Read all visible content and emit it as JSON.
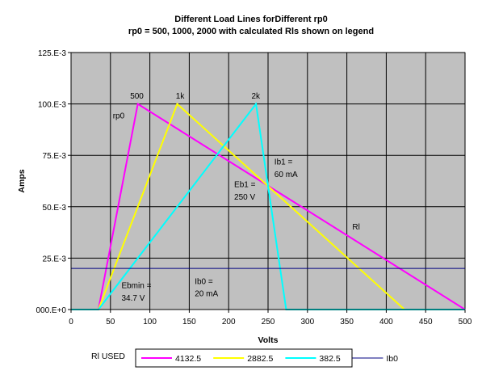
{
  "chart_data": {
    "type": "line",
    "title": "Different Load Lines forDifferent rp0",
    "subtitle": "rp0 = 500, 1000, 2000 with calculated Rls shown on legend",
    "xlabel": "Volts",
    "ylabel": "Amps",
    "xlim": [
      0,
      500
    ],
    "ylim": [
      0,
      0.125
    ],
    "x_ticks": [
      0,
      50,
      100,
      150,
      200,
      250,
      300,
      350,
      400,
      450,
      500
    ],
    "x_tick_labels": [
      "0",
      "50",
      "100",
      "150",
      "200",
      "250",
      "300",
      "350",
      "400",
      "450",
      "500"
    ],
    "y_ticks": [
      0,
      0.025,
      0.05,
      0.075,
      0.1,
      0.125
    ],
    "y_tick_labels": [
      "000.E+0",
      "25.E-3",
      "50.E-3",
      "75.E-3",
      "100.E-3",
      "125.E-3"
    ],
    "grid": true,
    "plot_background": "#c0c0c0",
    "legend_position": "bottom",
    "legend_title": "Rl USED",
    "series": [
      {
        "name": "4132.5",
        "color": "#ff00ff",
        "x": [
          0,
          34.7,
          84.7,
          500
        ],
        "y": [
          0,
          0,
          0.1,
          0
        ]
      },
      {
        "name": "2882.5",
        "color": "#ffff00",
        "x": [
          0,
          34.7,
          134.7,
          423.2
        ],
        "y": [
          0,
          0,
          0.1,
          0
        ]
      },
      {
        "name": "382.5",
        "color": "#00ffff",
        "x": [
          0,
          34.7,
          234.7,
          273,
          500
        ],
        "y": [
          0,
          0,
          0.1,
          0,
          0
        ]
      },
      {
        "name": "Ib0",
        "color": "#000080",
        "x": [
          0,
          500
        ],
        "y": [
          0.02,
          0.02
        ]
      }
    ],
    "annotations": [
      {
        "text": "500",
        "x": 75,
        "y": 0.1025
      },
      {
        "text": "1k",
        "x": 133,
        "y": 0.1025
      },
      {
        "text": "2k",
        "x": 229,
        "y": 0.1025
      },
      {
        "text": "rp0",
        "x": 53,
        "y": 0.093
      },
      {
        "text": "Ib1 =",
        "x": 258,
        "y": 0.0705
      },
      {
        "text": "60 mA",
        "x": 258,
        "y": 0.0645
      },
      {
        "text": "Eb1 =",
        "x": 207,
        "y": 0.0595
      },
      {
        "text": "250 V",
        "x": 207,
        "y": 0.0535
      },
      {
        "text": "Rl",
        "x": 357,
        "y": 0.039
      },
      {
        "text": "Ebmin =",
        "x": 64,
        "y": 0.0104
      },
      {
        "text": "34.7 V",
        "x": 64,
        "y": 0.0044
      },
      {
        "text": "Ib0 =",
        "x": 157,
        "y": 0.0124
      },
      {
        "text": "20 mA",
        "x": 157,
        "y": 0.0064
      }
    ]
  }
}
